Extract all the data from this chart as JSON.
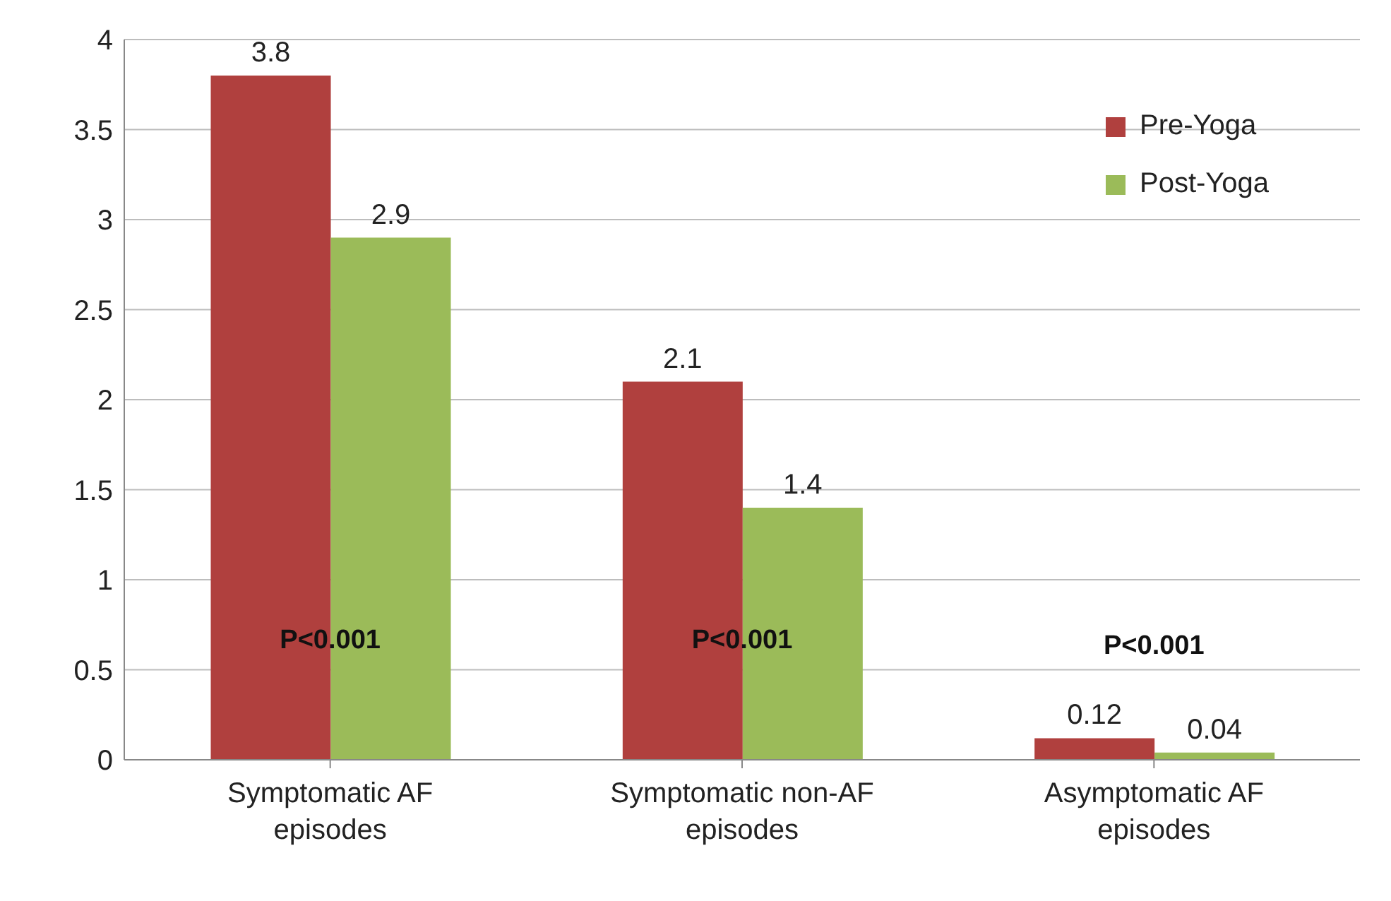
{
  "chart_data": {
    "type": "bar",
    "categories": [
      "Symptomatic AF episodes",
      "Symptomatic non-AF episodes",
      "Asymptomatic AF episodes"
    ],
    "series": [
      {
        "name": "Pre-Yoga",
        "color": "#b0403e",
        "values": [
          3.8,
          2.1,
          0.12
        ]
      },
      {
        "name": "Post-Yoga",
        "color": "#9bbb59",
        "values": [
          2.9,
          1.4,
          0.04
        ]
      }
    ],
    "ylim": [
      0,
      4
    ],
    "yticks": [
      0,
      0.5,
      1,
      1.5,
      2,
      2.5,
      3,
      3.5,
      4
    ],
    "grid": "y",
    "legend": "top right",
    "data_labels": true,
    "annotations": [
      "P<0.001",
      "P<0.001",
      "P<0.001"
    ]
  }
}
